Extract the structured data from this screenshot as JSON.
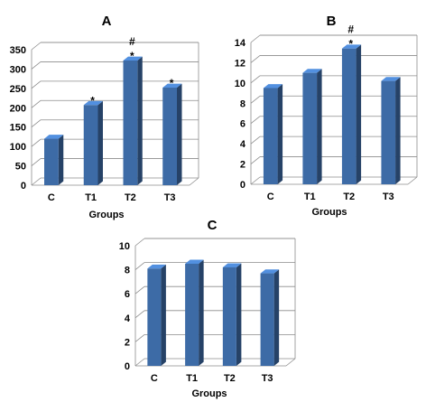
{
  "chart_data": [
    {
      "type": "bar",
      "title": "A",
      "categories": [
        "C",
        "T1",
        "T2",
        "T3"
      ],
      "values": [
        120,
        207,
        322,
        252
      ],
      "annotations": [
        "",
        "*",
        "#\n*",
        "*"
      ],
      "xlabel": "Groups",
      "ylabel": "",
      "ylim": [
        0,
        350
      ],
      "yticks": [
        0,
        50,
        100,
        150,
        200,
        250,
        300,
        350
      ],
      "grid": true,
      "color": "#3d6ba6"
    },
    {
      "type": "bar",
      "title": "B",
      "categories": [
        "C",
        "T1",
        "T2",
        "T3"
      ],
      "values": [
        9.5,
        11,
        13.4,
        10.2
      ],
      "annotations": [
        "",
        "",
        "#\n*",
        ""
      ],
      "xlabel": "Groups",
      "ylabel": "",
      "ylim": [
        0,
        14
      ],
      "yticks": [
        0,
        2,
        4,
        6,
        8,
        10,
        12,
        14
      ],
      "grid": true,
      "color": "#3d6ba6"
    },
    {
      "type": "bar",
      "title": "C",
      "categories": [
        "C",
        "T1",
        "T2",
        "T3"
      ],
      "values": [
        8.1,
        8.5,
        8.2,
        7.7
      ],
      "annotations": [
        "",
        "",
        "",
        ""
      ],
      "xlabel": "Groups",
      "ylabel": "",
      "ylim": [
        0,
        10
      ],
      "yticks": [
        0,
        2,
        4,
        6,
        8,
        10
      ],
      "grid": true,
      "color": "#3d6ba6"
    }
  ]
}
